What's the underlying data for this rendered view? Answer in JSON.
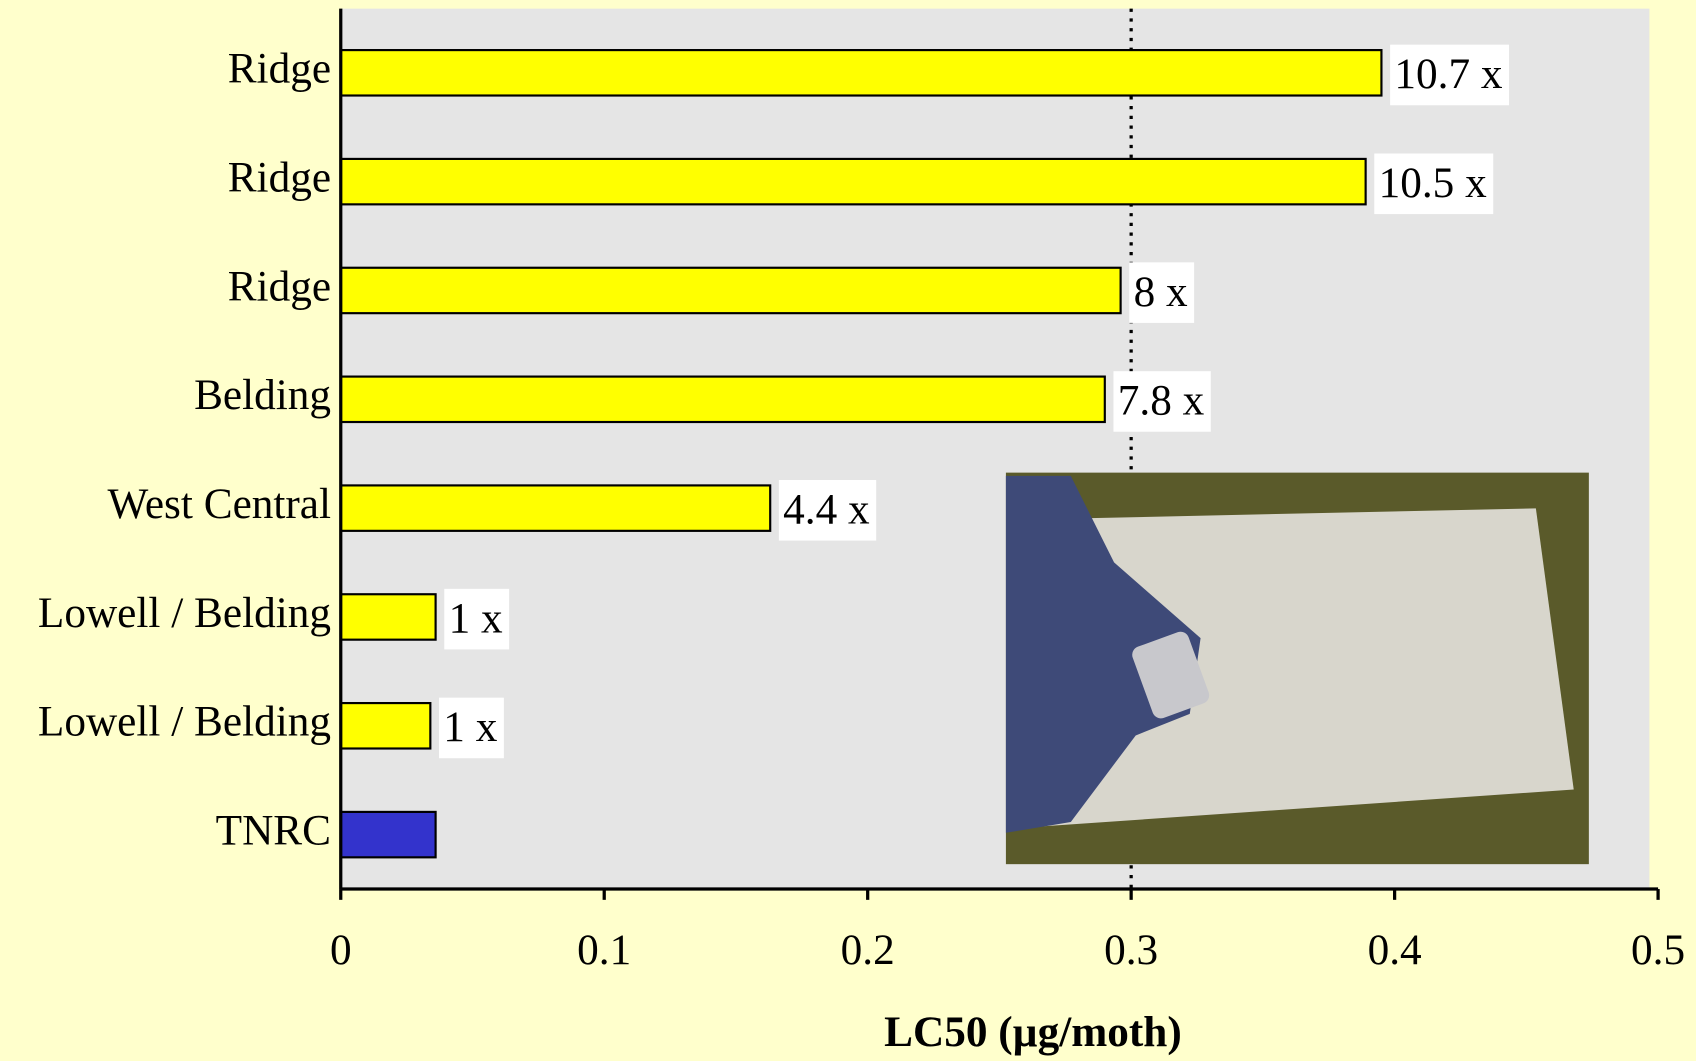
{
  "chart_data": {
    "type": "bar",
    "orientation": "horizontal",
    "x_label": "LC50 (µg/moth)",
    "categories": [
      "Ridge",
      "Ridge",
      "Ridge",
      "Belding",
      "West Central",
      "Lowell / Belding",
      "Lowell / Belding",
      "TNRC"
    ],
    "values": [
      0.395,
      0.389,
      0.296,
      0.29,
      0.163,
      0.036,
      0.034,
      0.036
    ],
    "colors": [
      "#ffff00",
      "#ffff00",
      "#ffff00",
      "#ffff00",
      "#ffff00",
      "#ffff00",
      "#ffff00",
      "#3333cc"
    ],
    "ratio_labels": [
      "10.7 x",
      "10.5 x",
      "8 x",
      "7.8 x",
      "4.4 x",
      "1 x",
      "1 x",
      null
    ],
    "xlim": [
      0,
      0.5
    ],
    "xticks": [
      0,
      0.1,
      0.2,
      0.3,
      0.4,
      0.5
    ],
    "reference_line": 0.3
  }
}
